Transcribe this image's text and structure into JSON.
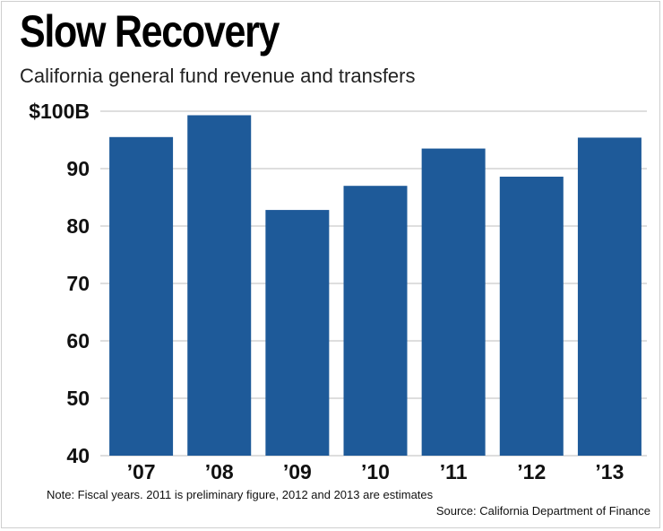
{
  "chart_data": {
    "type": "bar",
    "title": "Slow Recovery",
    "subtitle": "California general fund revenue and transfers",
    "categories": [
      "’07",
      "’08",
      "’09",
      "’10",
      "’11",
      "’12",
      "’13"
    ],
    "values": [
      95.5,
      99.3,
      82.8,
      87.0,
      93.5,
      88.6,
      95.4
    ],
    "ylim": [
      40,
      100
    ],
    "yticks": [
      40,
      50,
      60,
      70,
      80,
      90,
      100
    ],
    "ytick_labels": [
      "40",
      "50",
      "60",
      "70",
      "80",
      "90",
      "$100B"
    ],
    "xlabel": "",
    "ylabel": "",
    "grid": true,
    "bar_color": "#1e5a99",
    "grid_color": "#d4d4d4",
    "note": "Note: Fiscal years. 2011 is preliminary figure, 2012 and 2013 are estimates",
    "source": "Source: California Department of Finance"
  }
}
